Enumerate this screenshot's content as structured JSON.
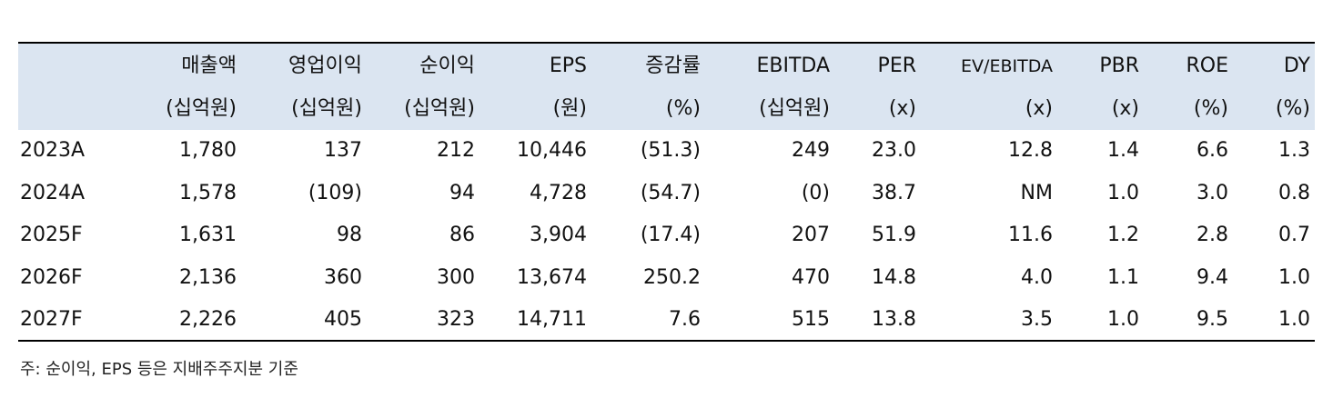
{
  "table": {
    "columns": [
      {
        "name": "매출액",
        "unit": "(십억원)"
      },
      {
        "name": "영업이익",
        "unit": "(십억원)"
      },
      {
        "name": "순이익",
        "unit": "(십억원)"
      },
      {
        "name": "EPS",
        "unit": "(원)"
      },
      {
        "name": "증감률",
        "unit": "(%)"
      },
      {
        "name": "EBITDA",
        "unit": "(십억원)"
      },
      {
        "name": "PER",
        "unit": "(x)"
      },
      {
        "name": "EV/EBITDA",
        "unit": "(x)"
      },
      {
        "name": "PBR",
        "unit": "(x)"
      },
      {
        "name": "ROE",
        "unit": "(%)"
      },
      {
        "name": "DY",
        "unit": "(%)"
      }
    ],
    "rows": [
      {
        "label": "2023A",
        "values": [
          "1,780",
          "137",
          "212",
          "10,446",
          "(51.3)",
          "249",
          "23.0",
          "12.8",
          "1.4",
          "6.6",
          "1.3"
        ]
      },
      {
        "label": "2024A",
        "values": [
          "1,578",
          "(109)",
          "94",
          "4,728",
          "(54.7)",
          "(0)",
          "38.7",
          "NM",
          "1.0",
          "3.0",
          "0.8"
        ]
      },
      {
        "label": "2025F",
        "values": [
          "1,631",
          "98",
          "86",
          "3,904",
          "(17.4)",
          "207",
          "51.9",
          "11.6",
          "1.2",
          "2.8",
          "0.7"
        ]
      },
      {
        "label": "2026F",
        "values": [
          "2,136",
          "360",
          "300",
          "13,674",
          "250.2",
          "470",
          "14.8",
          "4.0",
          "1.1",
          "9.4",
          "1.0"
        ]
      },
      {
        "label": "2027F",
        "values": [
          "2,226",
          "405",
          "323",
          "14,711",
          "7.6",
          "515",
          "13.8",
          "3.5",
          "1.0",
          "9.5",
          "1.0"
        ]
      }
    ],
    "note": "주: 순이익, EPS 등은 지배주주지분 기준"
  }
}
